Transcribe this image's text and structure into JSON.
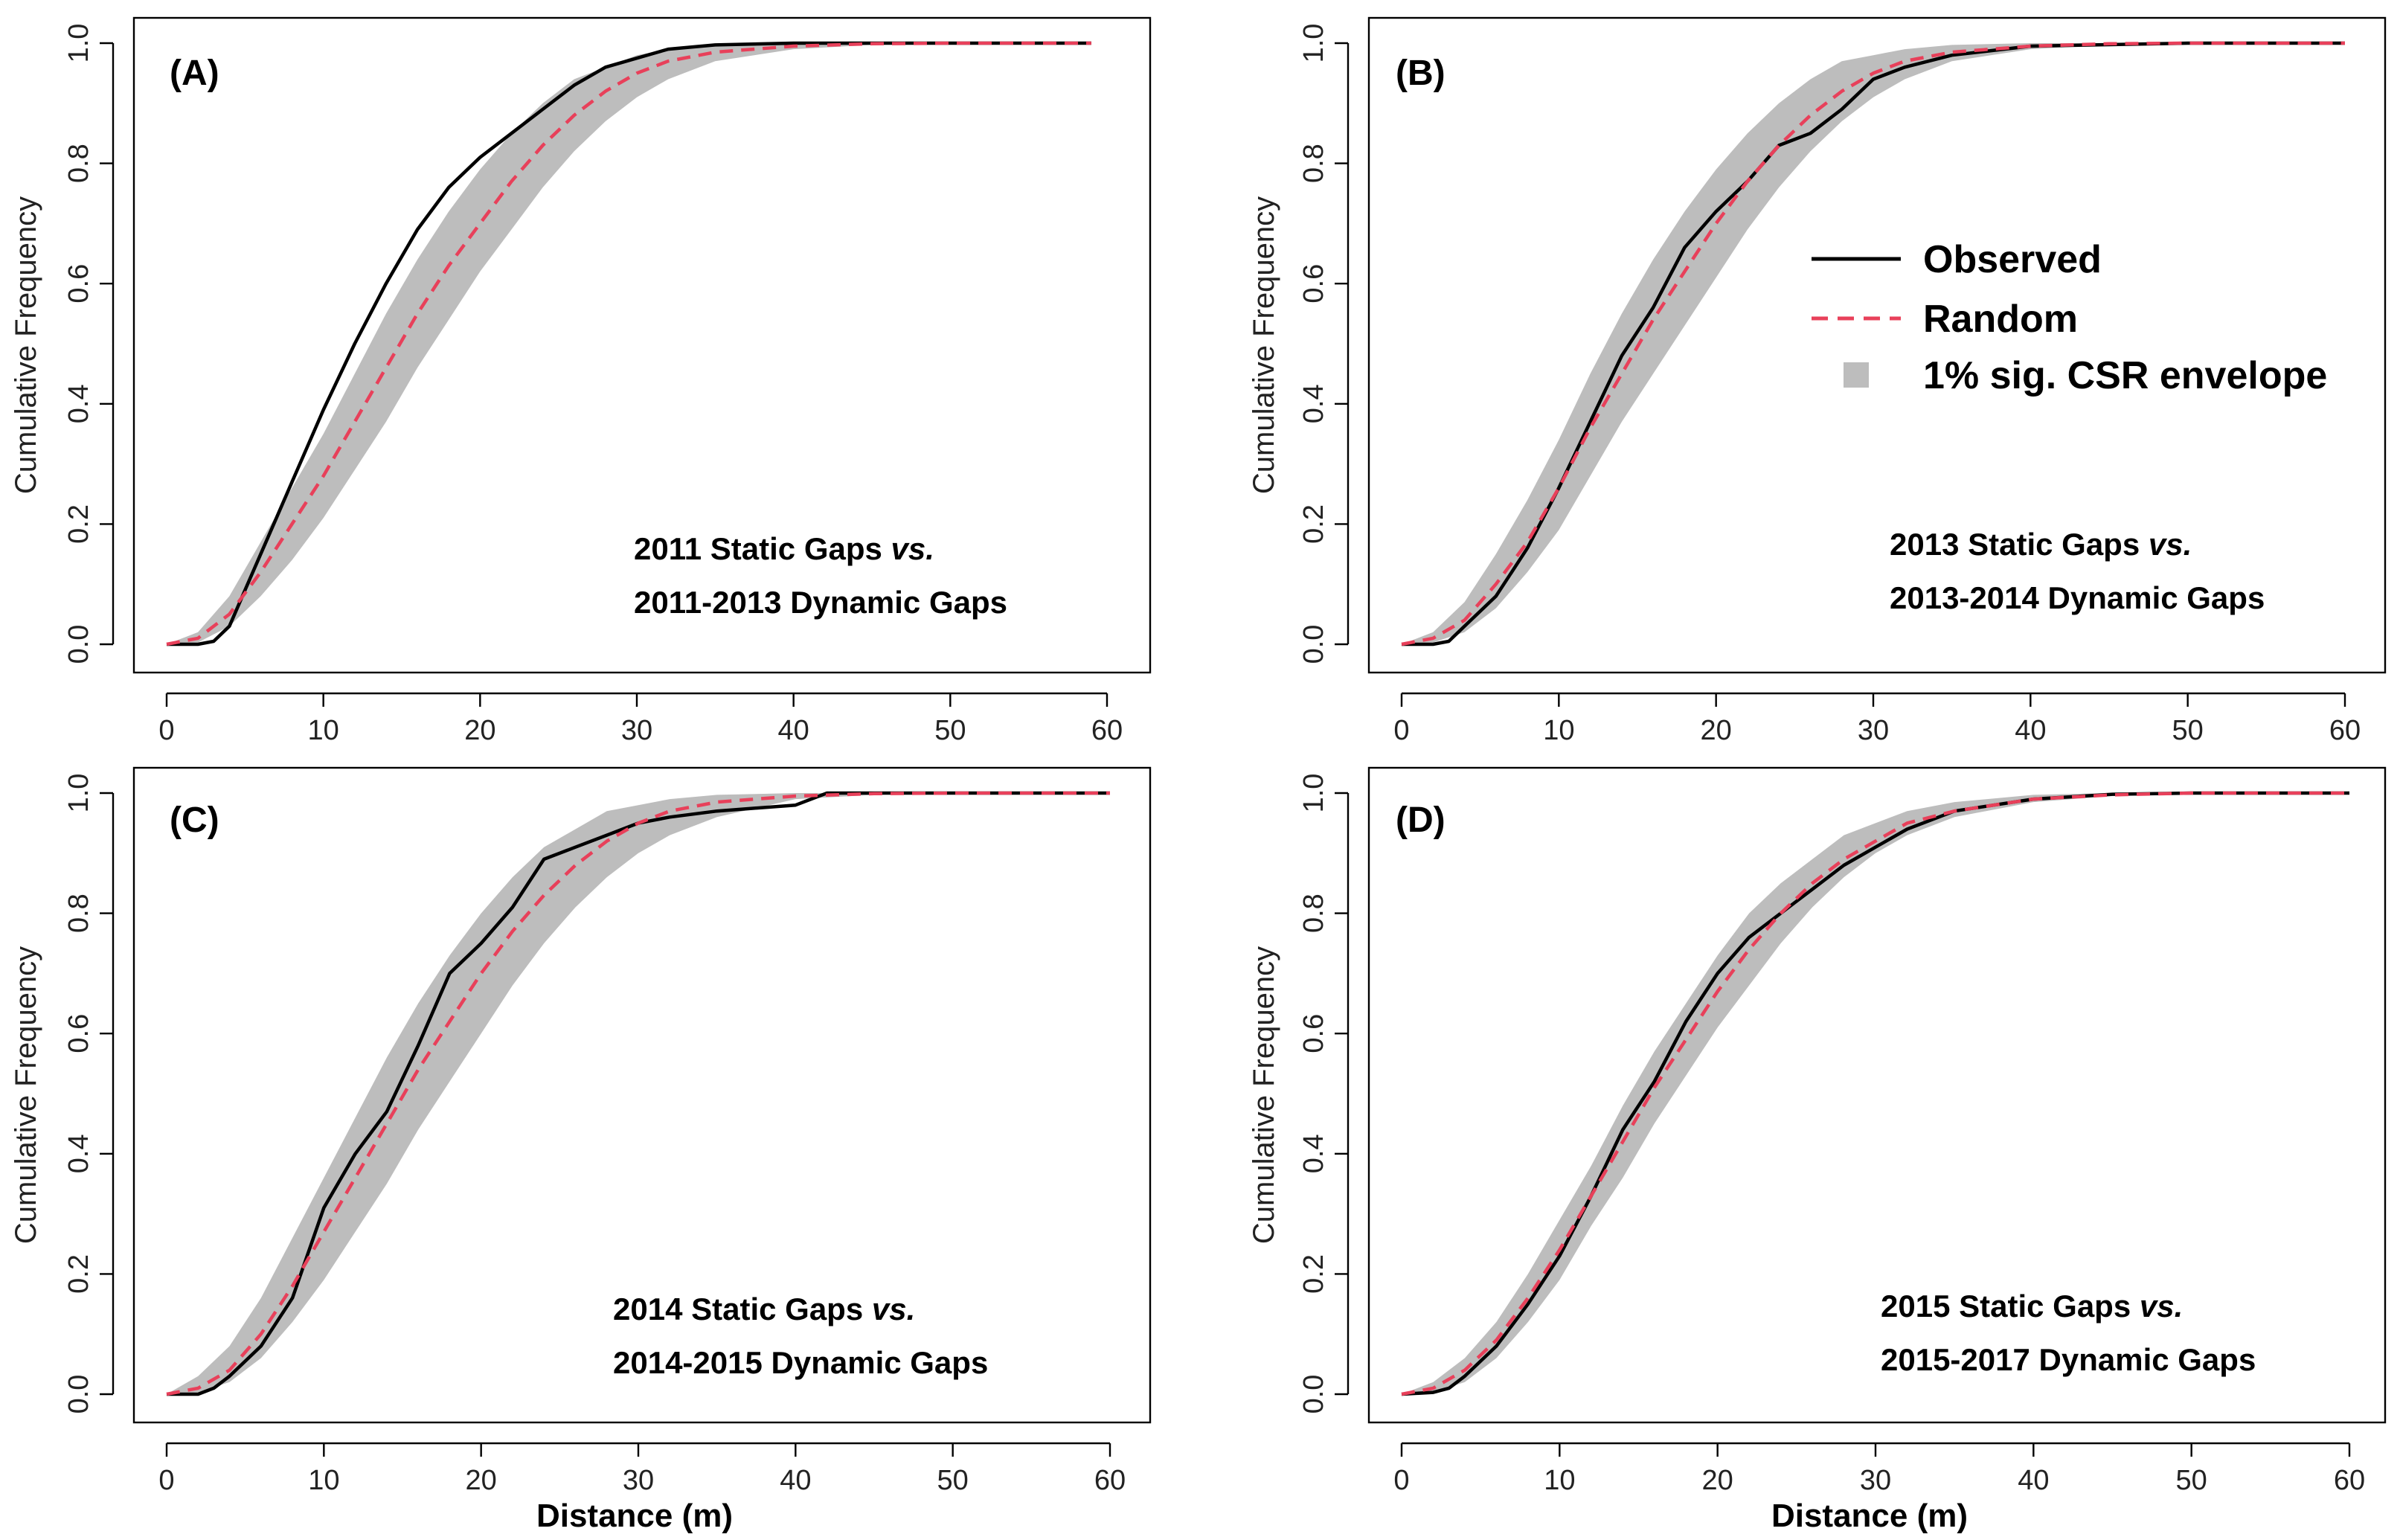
{
  "figure": {
    "xlabel": "Distance (m)"
  },
  "legend": {
    "observed": "Observed",
    "random": "Random",
    "envelope": "1% sig. CSR envelope"
  },
  "colors": {
    "observed": "#000000",
    "random": "#e8405a",
    "envelope": "#bdbdbd"
  },
  "chart_data": [
    {
      "type": "line",
      "panel": "(A)",
      "note_line1": "2011 Static Gaps",
      "note_vs": "vs.",
      "note_line2": "2011-2013 Dynamic Gaps",
      "xlabel": "",
      "ylabel": "Cumulative Frequency",
      "xlim": [
        0,
        60
      ],
      "ylim": [
        0,
        1
      ],
      "xticks": [
        0,
        10,
        20,
        30,
        40,
        50,
        60
      ],
      "yticks": [
        0.0,
        0.2,
        0.4,
        0.6,
        0.8,
        1.0
      ],
      "xticks_labels": [
        "0",
        "10",
        "20",
        "30",
        "40",
        "50",
        "60"
      ],
      "yticks_labels": [
        "0.0",
        "0.2",
        "0.4",
        "0.6",
        "0.8",
        "1.0"
      ],
      "x_max_data": 59,
      "series": [
        {
          "name": "Observed",
          "x": [
            0,
            2,
            3,
            4,
            5,
            6,
            7,
            8,
            9,
            10,
            12,
            14,
            16,
            18,
            20,
            22,
            24,
            26,
            28,
            30,
            32,
            35,
            40,
            50,
            59
          ],
          "y": [
            0,
            0,
            0.005,
            0.03,
            0.09,
            0.15,
            0.21,
            0.27,
            0.33,
            0.39,
            0.5,
            0.6,
            0.69,
            0.76,
            0.81,
            0.85,
            0.89,
            0.93,
            0.96,
            0.975,
            0.99,
            0.997,
            1,
            1,
            1
          ]
        },
        {
          "name": "Random",
          "x": [
            0,
            2,
            4,
            6,
            8,
            10,
            12,
            14,
            16,
            18,
            20,
            22,
            24,
            26,
            28,
            30,
            32,
            35,
            40,
            45,
            50,
            59
          ],
          "y": [
            0,
            0.01,
            0.05,
            0.12,
            0.2,
            0.28,
            0.37,
            0.46,
            0.55,
            0.63,
            0.7,
            0.77,
            0.83,
            0.88,
            0.92,
            0.95,
            0.97,
            0.985,
            0.995,
            0.999,
            1,
            1
          ]
        },
        {
          "name": "1% sig. CSR envelope upper",
          "x": [
            0,
            2,
            4,
            6,
            8,
            10,
            12,
            14,
            16,
            18,
            20,
            22,
            24,
            26,
            28,
            30,
            32,
            35,
            40,
            45,
            50,
            59
          ],
          "y": [
            0,
            0.02,
            0.08,
            0.17,
            0.26,
            0.35,
            0.45,
            0.55,
            0.64,
            0.72,
            0.79,
            0.85,
            0.9,
            0.94,
            0.96,
            0.98,
            0.99,
            0.997,
            1,
            1,
            1,
            1
          ]
        },
        {
          "name": "1% sig. CSR envelope lower",
          "x": [
            0,
            2,
            4,
            6,
            8,
            10,
            12,
            14,
            16,
            18,
            20,
            22,
            24,
            26,
            28,
            30,
            32,
            35,
            40,
            45,
            50,
            59
          ],
          "y": [
            0,
            0.003,
            0.03,
            0.08,
            0.14,
            0.21,
            0.29,
            0.37,
            0.46,
            0.54,
            0.62,
            0.69,
            0.76,
            0.82,
            0.87,
            0.91,
            0.94,
            0.97,
            0.99,
            0.997,
            1,
            1
          ]
        }
      ]
    },
    {
      "type": "line",
      "panel": "(B)",
      "note_line1": "2013 Static Gaps",
      "note_vs": "vs.",
      "note_line2": "2013-2014 Dynamic Gaps",
      "xlabel": "",
      "ylabel": "Cumulative Frequency",
      "xlim": [
        0,
        60
      ],
      "ylim": [
        0,
        1
      ],
      "xticks": [
        0,
        10,
        20,
        30,
        40,
        50,
        60
      ],
      "yticks": [
        0.0,
        0.2,
        0.4,
        0.6,
        0.8,
        1.0
      ],
      "xticks_labels": [
        "0",
        "10",
        "20",
        "30",
        "40",
        "50",
        "60"
      ],
      "yticks_labels": [
        "0.0",
        "0.2",
        "0.4",
        "0.6",
        "0.8",
        "1.0"
      ],
      "x_max_data": 60,
      "series": [
        {
          "name": "Observed",
          "x": [
            0,
            2,
            3,
            4,
            6,
            8,
            10,
            12,
            14,
            16,
            18,
            20,
            22,
            24,
            26,
            28,
            30,
            32,
            35,
            40,
            50,
            60
          ],
          "y": [
            0,
            0,
            0.005,
            0.03,
            0.08,
            0.16,
            0.26,
            0.37,
            0.48,
            0.56,
            0.66,
            0.72,
            0.77,
            0.83,
            0.85,
            0.89,
            0.94,
            0.96,
            0.98,
            0.995,
            1,
            1
          ]
        },
        {
          "name": "Random",
          "x": [
            0,
            2,
            4,
            6,
            8,
            10,
            12,
            14,
            16,
            18,
            20,
            22,
            24,
            26,
            28,
            30,
            32,
            35,
            40,
            45,
            50,
            60
          ],
          "y": [
            0,
            0.01,
            0.04,
            0.1,
            0.17,
            0.26,
            0.36,
            0.45,
            0.54,
            0.62,
            0.7,
            0.77,
            0.83,
            0.88,
            0.92,
            0.95,
            0.97,
            0.985,
            0.995,
            0.999,
            1,
            1
          ]
        },
        {
          "name": "1% sig. CSR envelope upper",
          "x": [
            0,
            2,
            4,
            6,
            8,
            10,
            12,
            14,
            16,
            18,
            20,
            22,
            24,
            26,
            28,
            30,
            32,
            35,
            40,
            45,
            50,
            60
          ],
          "y": [
            0,
            0.02,
            0.07,
            0.15,
            0.24,
            0.34,
            0.45,
            0.55,
            0.64,
            0.72,
            0.79,
            0.85,
            0.9,
            0.94,
            0.97,
            0.98,
            0.99,
            0.997,
            1,
            1,
            1,
            1
          ]
        },
        {
          "name": "1% sig. CSR envelope lower",
          "x": [
            0,
            2,
            4,
            6,
            8,
            10,
            12,
            14,
            16,
            18,
            20,
            22,
            24,
            26,
            28,
            30,
            32,
            35,
            40,
            45,
            50,
            60
          ],
          "y": [
            0,
            0.003,
            0.02,
            0.06,
            0.12,
            0.19,
            0.28,
            0.37,
            0.45,
            0.53,
            0.61,
            0.69,
            0.76,
            0.82,
            0.87,
            0.91,
            0.94,
            0.97,
            0.99,
            0.997,
            1,
            1
          ]
        }
      ]
    },
    {
      "type": "line",
      "panel": "(C)",
      "note_line1": "2014 Static Gaps",
      "note_vs": "vs.",
      "note_line2": "2014-2015 Dynamic Gaps",
      "xlabel": "Distance (m)",
      "ylabel": "Cumulative Frequency",
      "xlim": [
        0,
        60
      ],
      "ylim": [
        0,
        1
      ],
      "xticks": [
        0,
        10,
        20,
        30,
        40,
        50,
        60
      ],
      "yticks": [
        0.0,
        0.2,
        0.4,
        0.6,
        0.8,
        1.0
      ],
      "xticks_labels": [
        "0",
        "10",
        "20",
        "30",
        "40",
        "50",
        "60"
      ],
      "yticks_labels": [
        "0.0",
        "0.2",
        "0.4",
        "0.6",
        "0.8",
        "1.0"
      ],
      "x_max_data": 60,
      "series": [
        {
          "name": "Observed",
          "x": [
            0,
            2,
            3,
            4,
            6,
            8,
            10,
            12,
            14,
            16,
            18,
            20,
            22,
            24,
            26,
            28,
            30,
            32,
            35,
            40,
            42,
            50,
            60
          ],
          "y": [
            0,
            0,
            0.01,
            0.03,
            0.08,
            0.16,
            0.31,
            0.4,
            0.47,
            0.58,
            0.7,
            0.75,
            0.81,
            0.89,
            0.91,
            0.93,
            0.95,
            0.96,
            0.97,
            0.98,
            1,
            1,
            1
          ]
        },
        {
          "name": "Random",
          "x": [
            0,
            2,
            4,
            6,
            8,
            10,
            12,
            14,
            16,
            18,
            20,
            22,
            24,
            26,
            28,
            30,
            32,
            35,
            40,
            45,
            50,
            60
          ],
          "y": [
            0,
            0.01,
            0.04,
            0.1,
            0.18,
            0.27,
            0.36,
            0.45,
            0.54,
            0.62,
            0.7,
            0.77,
            0.83,
            0.88,
            0.92,
            0.95,
            0.97,
            0.985,
            0.995,
            0.999,
            1,
            1
          ]
        },
        {
          "name": "1% sig. CSR envelope upper",
          "x": [
            0,
            2,
            4,
            6,
            8,
            10,
            12,
            14,
            16,
            18,
            20,
            22,
            24,
            26,
            28,
            30,
            32,
            35,
            40,
            45,
            50,
            60
          ],
          "y": [
            0,
            0.03,
            0.08,
            0.16,
            0.26,
            0.36,
            0.46,
            0.56,
            0.65,
            0.73,
            0.8,
            0.86,
            0.91,
            0.94,
            0.97,
            0.98,
            0.99,
            0.997,
            1,
            1,
            1,
            1
          ]
        },
        {
          "name": "1% sig. CSR envelope lower",
          "x": [
            0,
            2,
            4,
            6,
            8,
            10,
            12,
            14,
            16,
            18,
            20,
            22,
            24,
            26,
            28,
            30,
            32,
            35,
            40,
            45,
            50,
            60
          ],
          "y": [
            0,
            0.003,
            0.02,
            0.06,
            0.12,
            0.19,
            0.27,
            0.35,
            0.44,
            0.52,
            0.6,
            0.68,
            0.75,
            0.81,
            0.86,
            0.9,
            0.93,
            0.96,
            0.99,
            0.997,
            1,
            1
          ]
        }
      ]
    },
    {
      "type": "line",
      "panel": "(D)",
      "note_line1": "2015 Static Gaps",
      "note_vs": "vs.",
      "note_line2": "2015-2017 Dynamic Gaps",
      "xlabel": "Distance (m)",
      "ylabel": "Cumulative Frequency",
      "xlim": [
        0,
        60
      ],
      "ylim": [
        0,
        1
      ],
      "xticks": [
        0,
        10,
        20,
        30,
        40,
        50,
        60
      ],
      "yticks": [
        0.0,
        0.2,
        0.4,
        0.6,
        0.8,
        1.0
      ],
      "xticks_labels": [
        "0",
        "10",
        "20",
        "30",
        "40",
        "50",
        "60"
      ],
      "yticks_labels": [
        "0.0",
        "0.2",
        "0.4",
        "0.6",
        "0.8",
        "1.0"
      ],
      "x_max_data": 60,
      "series": [
        {
          "name": "Observed",
          "x": [
            0,
            2,
            3,
            4,
            6,
            8,
            10,
            12,
            14,
            16,
            18,
            20,
            22,
            24,
            26,
            28,
            30,
            32,
            35,
            40,
            45,
            50,
            60
          ],
          "y": [
            0,
            0.003,
            0.01,
            0.03,
            0.08,
            0.15,
            0.23,
            0.33,
            0.44,
            0.52,
            0.62,
            0.7,
            0.76,
            0.8,
            0.84,
            0.88,
            0.91,
            0.94,
            0.97,
            0.99,
            0.998,
            1,
            1
          ]
        },
        {
          "name": "Random",
          "x": [
            0,
            2,
            4,
            6,
            8,
            10,
            12,
            14,
            16,
            18,
            20,
            22,
            24,
            26,
            28,
            30,
            32,
            35,
            40,
            45,
            50,
            60
          ],
          "y": [
            0,
            0.01,
            0.04,
            0.09,
            0.16,
            0.24,
            0.33,
            0.42,
            0.51,
            0.59,
            0.67,
            0.74,
            0.8,
            0.85,
            0.89,
            0.92,
            0.95,
            0.97,
            0.99,
            0.997,
            1,
            1
          ]
        },
        {
          "name": "1% sig. CSR envelope upper",
          "x": [
            0,
            2,
            4,
            6,
            8,
            10,
            12,
            14,
            16,
            18,
            20,
            22,
            24,
            26,
            28,
            30,
            32,
            35,
            40,
            45,
            50,
            60
          ],
          "y": [
            0,
            0.02,
            0.06,
            0.12,
            0.2,
            0.29,
            0.38,
            0.48,
            0.57,
            0.65,
            0.73,
            0.8,
            0.85,
            0.89,
            0.93,
            0.95,
            0.97,
            0.985,
            0.997,
            1,
            1,
            1
          ]
        },
        {
          "name": "1% sig. CSR envelope lower",
          "x": [
            0,
            2,
            4,
            6,
            8,
            10,
            12,
            14,
            16,
            18,
            20,
            22,
            24,
            26,
            28,
            30,
            32,
            35,
            40,
            45,
            50,
            60
          ],
          "y": [
            0,
            0.003,
            0.02,
            0.06,
            0.12,
            0.19,
            0.28,
            0.36,
            0.45,
            0.53,
            0.61,
            0.68,
            0.75,
            0.81,
            0.86,
            0.9,
            0.93,
            0.96,
            0.985,
            0.995,
            1,
            1
          ]
        }
      ]
    }
  ]
}
